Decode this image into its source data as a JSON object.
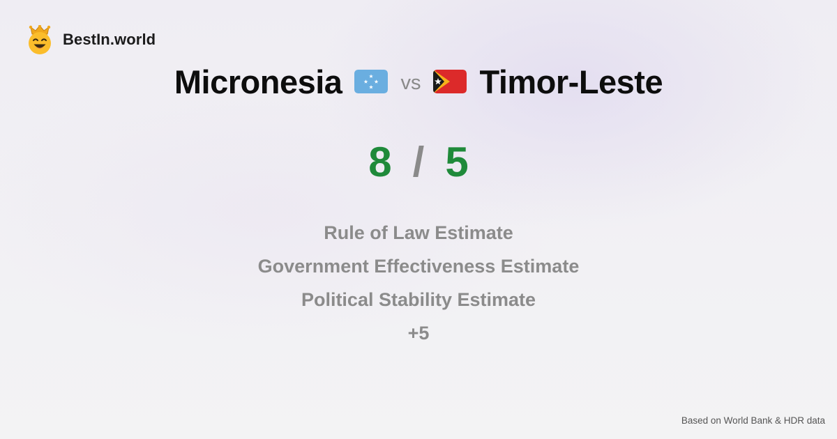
{
  "brand": {
    "name": "BestIn.world",
    "logo_icon": "crown-smiley-icon"
  },
  "comparison": {
    "left_country": "Micronesia",
    "left_flag_icon": "micronesia-flag-icon",
    "vs_label": "vs",
    "right_country": "Timor-Leste",
    "right_flag_icon": "timor-leste-flag-icon"
  },
  "score": {
    "left": "8",
    "separator": "/",
    "right": "5"
  },
  "metrics": [
    "Rule of Law Estimate",
    "Government Effectiveness Estimate",
    "Political Stability Estimate"
  ],
  "more_label": "+5",
  "footer": {
    "source": "Based on World Bank & HDR data"
  },
  "colors": {
    "score_green": "#1f8a3a",
    "muted_gray": "#8b8b8b",
    "title_black": "#0d0d0d"
  }
}
